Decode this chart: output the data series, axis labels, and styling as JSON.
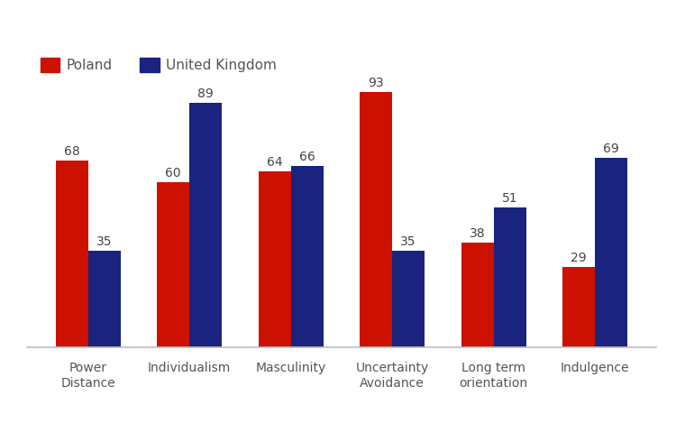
{
  "categories": [
    "Power\nDistance",
    "Individualism",
    "Masculinity",
    "Uncertainty\nAvoidance",
    "Long term\norientation",
    "Indulgence"
  ],
  "poland_values": [
    68,
    60,
    64,
    93,
    38,
    29
  ],
  "uk_values": [
    35,
    89,
    66,
    35,
    51,
    69
  ],
  "poland_color": "#CC1100",
  "uk_color": "#1A237E",
  "poland_label": "Poland",
  "uk_label": "United Kingdom",
  "bar_width": 0.32,
  "ylim": [
    0,
    108
  ],
  "background_color": "#ffffff",
  "tick_fontsize": 10,
  "legend_fontsize": 11,
  "value_fontsize": 10
}
